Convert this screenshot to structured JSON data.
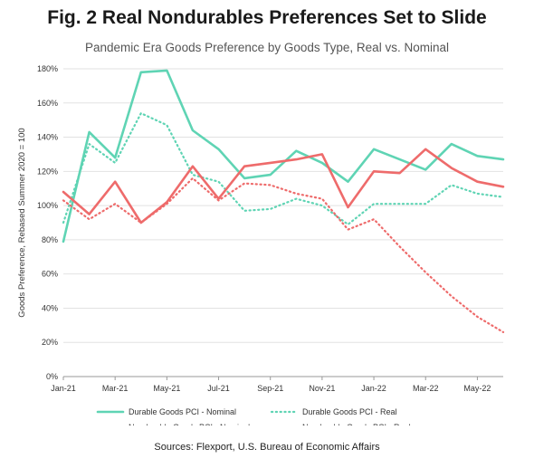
{
  "title": "Fig. 2 Real Nondurables Preferences Set to Slide",
  "subtitle": "Pandemic Era Goods Preference by Goods Type, Real vs. Nominal",
  "source": "Sources: Flexport, U.S. Bureau of Economic Affairs",
  "chart_data": {
    "type": "line",
    "title": "Fig. 2 Real Nondurables Preferences Set to Slide",
    "subtitle": "Pandemic Era Goods Preference by Goods Type, Real vs. Nominal",
    "xlabel": "",
    "ylabel": "Goods Preference, Rebased Summer 2020 = 100",
    "x": [
      "Jan-21",
      "Feb-21",
      "Mar-21",
      "Apr-21",
      "May-21",
      "Jun-21",
      "Jul-21",
      "Aug-21",
      "Sep-21",
      "Oct-21",
      "Nov-21",
      "Dec-21",
      "Jan-22",
      "Feb-22",
      "Mar-22",
      "Apr-22",
      "May-22",
      "Jun-22"
    ],
    "x_tick_labels": [
      "Jan-21",
      "Mar-21",
      "May-21",
      "Jul-21",
      "Sep-21",
      "Nov-21",
      "Jan-22",
      "Mar-22",
      "May-22"
    ],
    "y_ticks": [
      0,
      20,
      40,
      60,
      80,
      100,
      120,
      140,
      160,
      180
    ],
    "y_tick_format": "%",
    "ylim": [
      0,
      180
    ],
    "grid": "horizontal",
    "legend_position": "bottom",
    "series": [
      {
        "name": "Durable Goods PCI - Nominal",
        "color": "#5fd4b4",
        "style": "solid",
        "values": [
          79,
          143,
          128,
          178,
          179,
          144,
          133,
          116,
          118,
          132,
          125,
          114,
          133,
          127,
          121,
          136,
          129,
          127
        ]
      },
      {
        "name": "Durable Goods PCI - Real",
        "color": "#5fd4b4",
        "style": "dotted",
        "values": [
          90,
          136,
          125,
          154,
          147,
          118,
          114,
          97,
          98,
          104,
          100,
          89,
          101,
          101,
          101,
          112,
          107,
          105
        ]
      },
      {
        "name": "Nondurable Goods PCI - Nominal",
        "color": "#ee6b6b",
        "style": "solid",
        "values": [
          108,
          95,
          114,
          90,
          102,
          123,
          104,
          123,
          125,
          127,
          130,
          99,
          120,
          119,
          133,
          122,
          114,
          111
        ]
      },
      {
        "name": "Nondurable Goods PCI - Real",
        "color": "#ee6b6b",
        "style": "dotted",
        "values": [
          103,
          92,
          101,
          90,
          101,
          116,
          103,
          113,
          112,
          107,
          104,
          86,
          92,
          76,
          61,
          47,
          35,
          26
        ]
      }
    ]
  }
}
